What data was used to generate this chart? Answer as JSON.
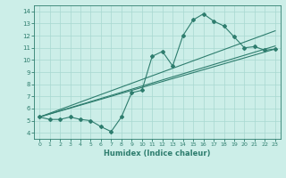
{
  "xlabel": "Humidex (Indice chaleur)",
  "bg_color": "#cceee8",
  "line_color": "#2e7d6e",
  "grid_color": "#a8d8d0",
  "xlim": [
    -0.5,
    23.5
  ],
  "ylim": [
    3.5,
    14.5
  ],
  "xticks": [
    0,
    1,
    2,
    3,
    4,
    5,
    6,
    7,
    8,
    9,
    10,
    11,
    12,
    13,
    14,
    15,
    16,
    17,
    18,
    19,
    20,
    21,
    22,
    23
  ],
  "yticks": [
    4,
    5,
    6,
    7,
    8,
    9,
    10,
    11,
    12,
    13,
    14
  ],
  "curve_x": [
    0,
    1,
    2,
    3,
    4,
    5,
    6,
    7,
    8,
    9,
    10,
    11,
    12,
    13,
    14,
    15,
    16,
    17,
    18,
    19,
    20,
    21,
    22,
    23
  ],
  "curve_y": [
    5.3,
    5.1,
    5.1,
    5.3,
    5.1,
    5.0,
    4.5,
    4.1,
    5.3,
    7.3,
    7.5,
    10.3,
    10.7,
    9.5,
    12.0,
    13.3,
    13.8,
    13.2,
    12.8,
    11.9,
    11.0,
    11.1,
    10.8,
    10.9
  ],
  "reg_lines": [
    [
      5.3,
      10.9
    ],
    [
      5.3,
      11.15
    ],
    [
      5.3,
      12.4
    ]
  ]
}
